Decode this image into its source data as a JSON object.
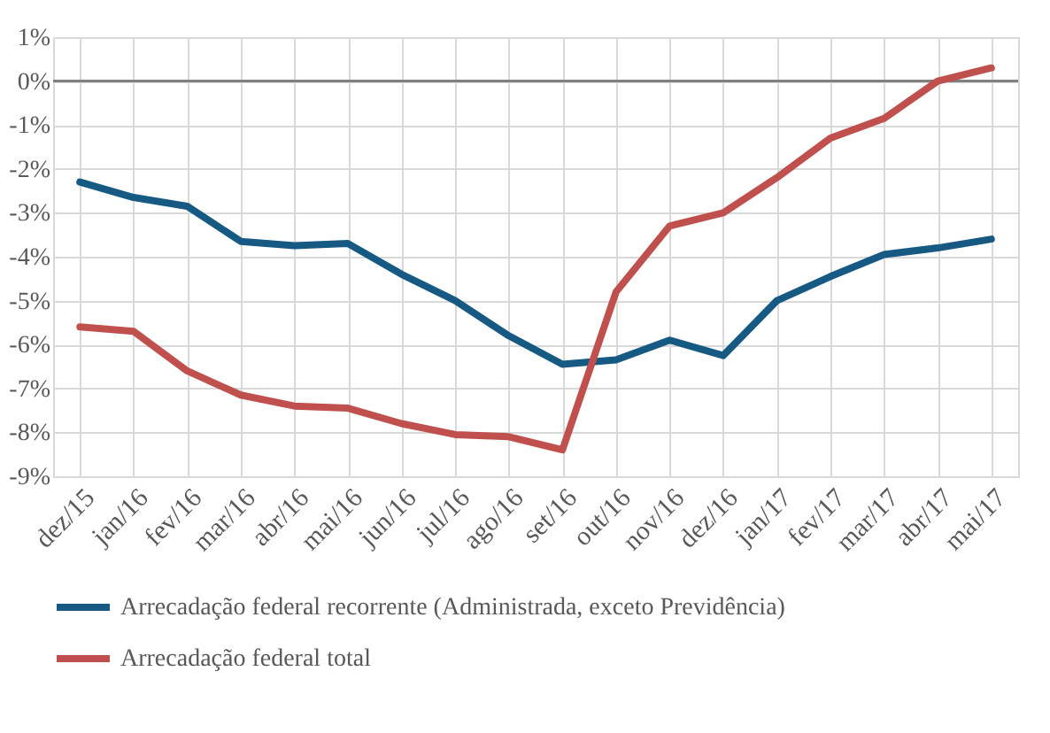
{
  "chart_data": {
    "type": "line",
    "categories": [
      "dez/15",
      "jan/16",
      "fev/16",
      "mar/16",
      "abr/16",
      "mai/16",
      "jun/16",
      "jul/16",
      "ago/16",
      "set/16",
      "out/16",
      "nov/16",
      "dez/16",
      "jan/17",
      "fev/17",
      "mar/17",
      "abr/17",
      "mai/17"
    ],
    "series": [
      {
        "name": "Arrecadação federal recorrente (Administrada, exceto Previdência)",
        "color": "#165a84",
        "values": [
          -2.3,
          -2.65,
          -2.85,
          -3.65,
          -3.75,
          -3.7,
          -4.4,
          -5.0,
          -5.8,
          -6.45,
          -6.35,
          -5.9,
          -6.25,
          -5.0,
          -4.45,
          -3.95,
          -3.8,
          -3.6
        ]
      },
      {
        "name": "Arrecadação federal total",
        "color": "#c0504d",
        "values": [
          -5.6,
          -5.7,
          -6.6,
          -7.15,
          -7.4,
          -7.45,
          -7.8,
          -8.05,
          -8.1,
          -8.4,
          -4.8,
          -3.3,
          -3.0,
          -2.2,
          -1.3,
          -0.85,
          0.0,
          0.3
        ]
      }
    ],
    "ylim": [
      -9,
      1
    ],
    "yticks": [
      {
        "value": -9,
        "label": "-9%"
      },
      {
        "value": -8,
        "label": "-8%"
      },
      {
        "value": -7,
        "label": "-7%"
      },
      {
        "value": -6,
        "label": "-6%"
      },
      {
        "value": -5,
        "label": "-5%"
      },
      {
        "value": -4,
        "label": "-4%"
      },
      {
        "value": -3,
        "label": "-3%"
      },
      {
        "value": -2,
        "label": "-2%"
      },
      {
        "value": -1,
        "label": "-1%"
      },
      {
        "value": 0,
        "label": "0%"
      },
      {
        "value": 1,
        "label": "1%"
      }
    ],
    "ref_lines": [
      {
        "axis": "y",
        "value": 0,
        "color": "#808080"
      }
    ],
    "grid": true,
    "legend": "bottom",
    "line_style": "solid"
  }
}
